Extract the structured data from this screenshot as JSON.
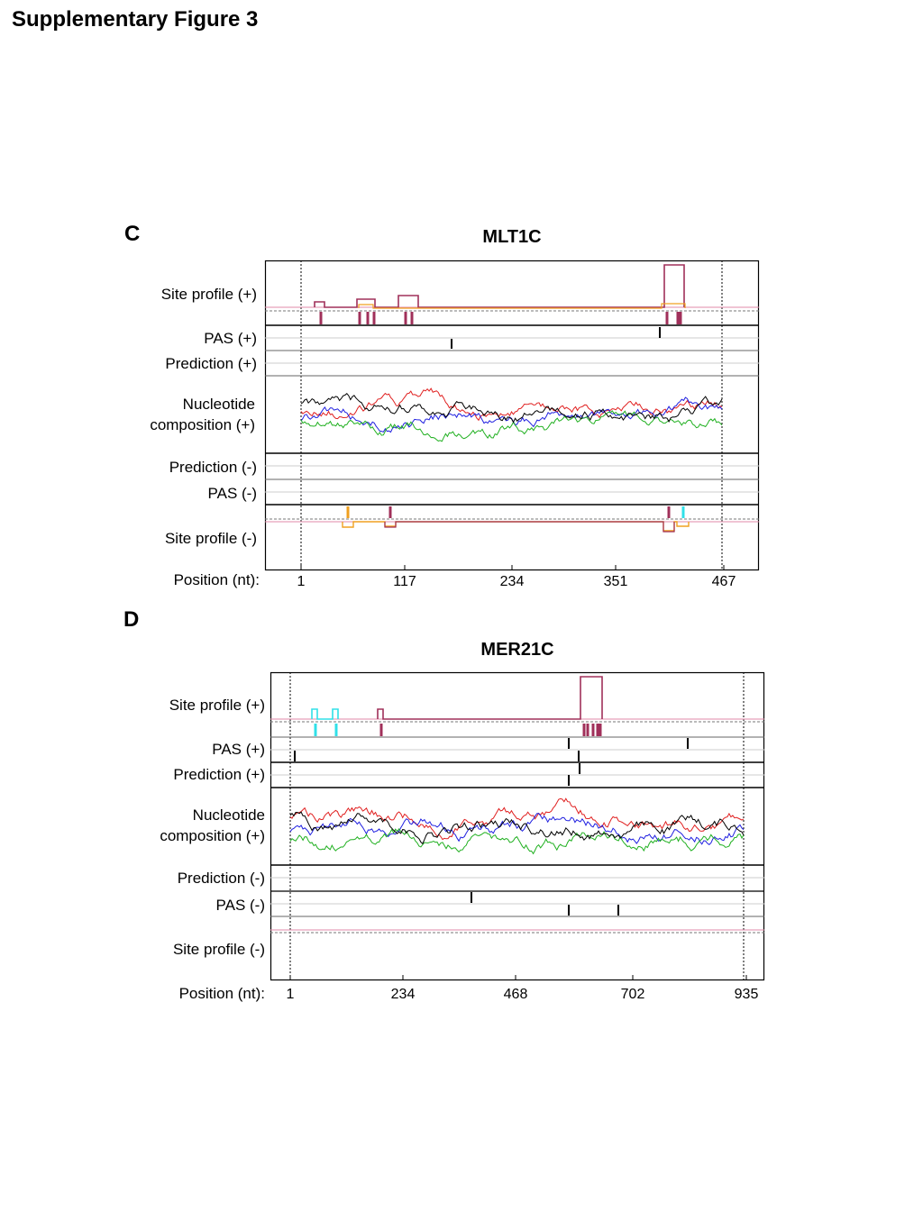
{
  "page": {
    "title": "Supplementary Figure 3"
  },
  "panels": [
    {
      "letter": "C",
      "title": "MLT1C",
      "labels": {
        "site_plus": "Site profile (+)",
        "pas_plus": "PAS (+)",
        "pred_plus": "Prediction (+)",
        "nuc_line1": "Nucleotide",
        "nuc_line2": "composition (+)",
        "pred_minus": "Prediction (-)",
        "pas_minus": "PAS (-)",
        "site_minus": "Site profile (-)",
        "position": "Position (nt):"
      },
      "ticks": [
        "1",
        "117",
        "234",
        "351",
        "467"
      ]
    },
    {
      "letter": "D",
      "title": "MER21C",
      "labels": {
        "site_plus": "Site profile (+)",
        "pas_plus": "PAS (+)",
        "pred_plus": "Prediction (+)",
        "nuc_line1": "Nucleotide",
        "nuc_line2": "composition (+)",
        "pred_minus": "Prediction (-)",
        "pas_minus": "PAS (-)",
        "site_minus": "Site profile (-)",
        "position": "Position (nt):"
      },
      "ticks": [
        "1",
        "234",
        "468",
        "702",
        "935"
      ]
    }
  ],
  "colors": {
    "maroon": "#a0305a",
    "orange": "#f0a020",
    "cyan": "#30e0e8",
    "red": "#e02020",
    "blue": "#2020e0",
    "green": "#20b020",
    "black": "#000000",
    "pink": "#e08aa8"
  }
}
